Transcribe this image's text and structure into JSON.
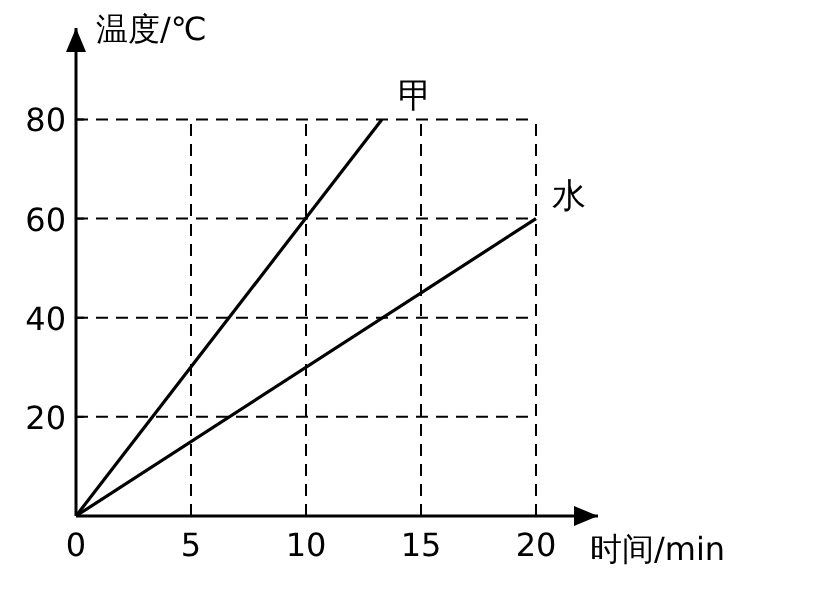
{
  "chart_data": {
    "type": "line",
    "xlabel": "时间/min",
    "ylabel": "温度/℃",
    "xlim": [
      0,
      22
    ],
    "ylim": [
      0,
      92
    ],
    "xticks": [
      0,
      5,
      10,
      15,
      20
    ],
    "yticks": [
      {
        "value": 0,
        "label": null
      },
      20,
      40,
      60,
      80
    ],
    "grid": true,
    "marker": "none",
    "line_style": "solid",
    "series": [
      {
        "name": "甲",
        "color": "#000000",
        "x": [
          0,
          13.3
        ],
        "values": [
          0,
          80
        ]
      },
      {
        "name": "水",
        "color": "#000000",
        "x": [
          0,
          20
        ],
        "values": [
          0,
          60
        ]
      }
    ]
  }
}
